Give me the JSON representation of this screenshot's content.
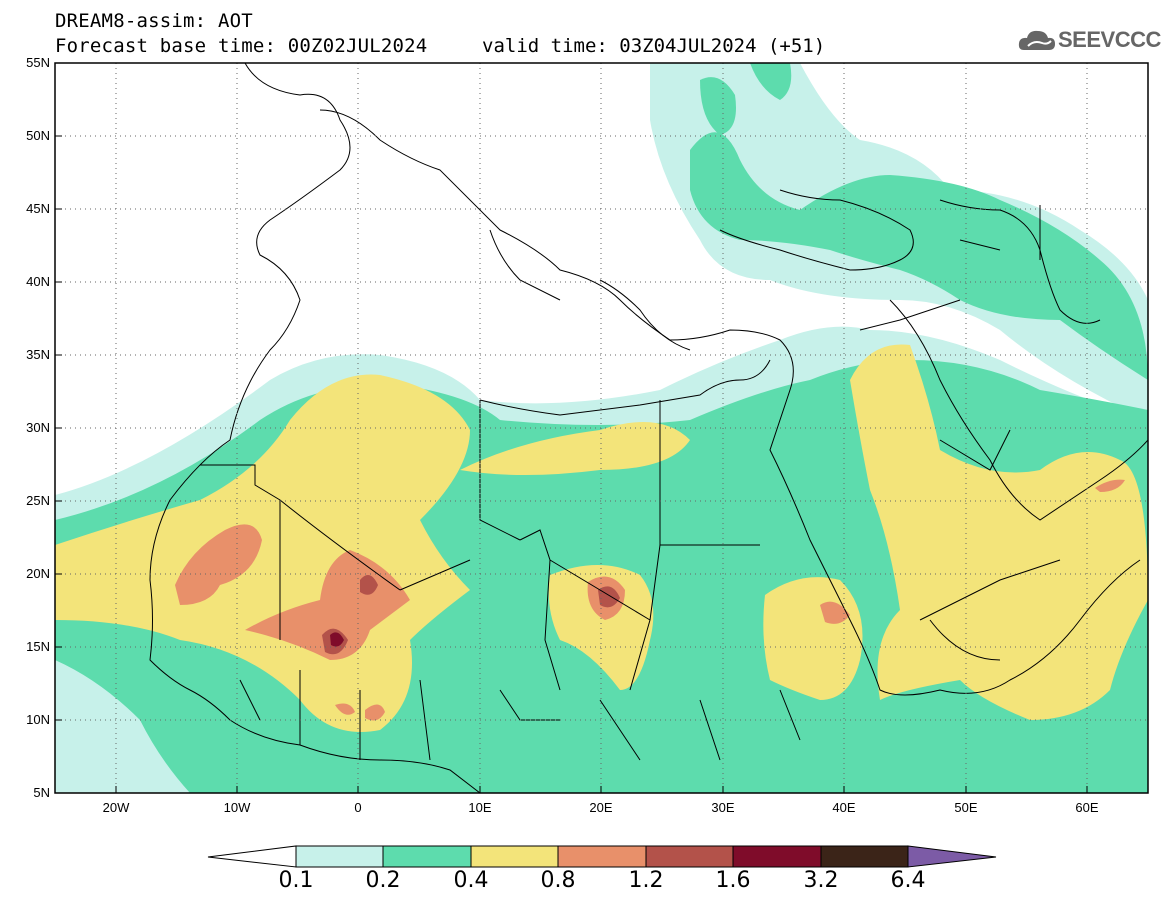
{
  "title": {
    "line1": "DREAM8-assim: AOT",
    "base": "Forecast base time: 00Z02JUL2024",
    "valid": "valid time: 03Z04JUL2024 (+51)"
  },
  "logo": {
    "text": "SEEVCCC",
    "icon": "cloud-icon"
  },
  "map": {
    "extent": {
      "lon": [
        -25,
        65
      ],
      "lat": [
        5,
        55
      ]
    },
    "lat_labels": [
      "55N",
      "50N",
      "45N",
      "40N",
      "35N",
      "30N",
      "25N",
      "20N",
      "15N",
      "10N",
      "5N"
    ],
    "lon_labels": [
      "20W",
      "10W",
      "0",
      "10E",
      "20E",
      "30E",
      "40E",
      "50E",
      "60E"
    ],
    "grid": "dotted"
  },
  "colorbar": {
    "labels": [
      "0.1",
      "0.2",
      "0.4",
      "0.8",
      "1.2",
      "1.6",
      "3.2",
      "6.4"
    ],
    "colors": [
      "#ffffff",
      "#c7f1ea",
      "#5ddcad",
      "#f3e47a",
      "#e8906a",
      "#b3524a",
      "#7f0c2a",
      "#3b2418",
      "#7c5ba6"
    ]
  }
}
